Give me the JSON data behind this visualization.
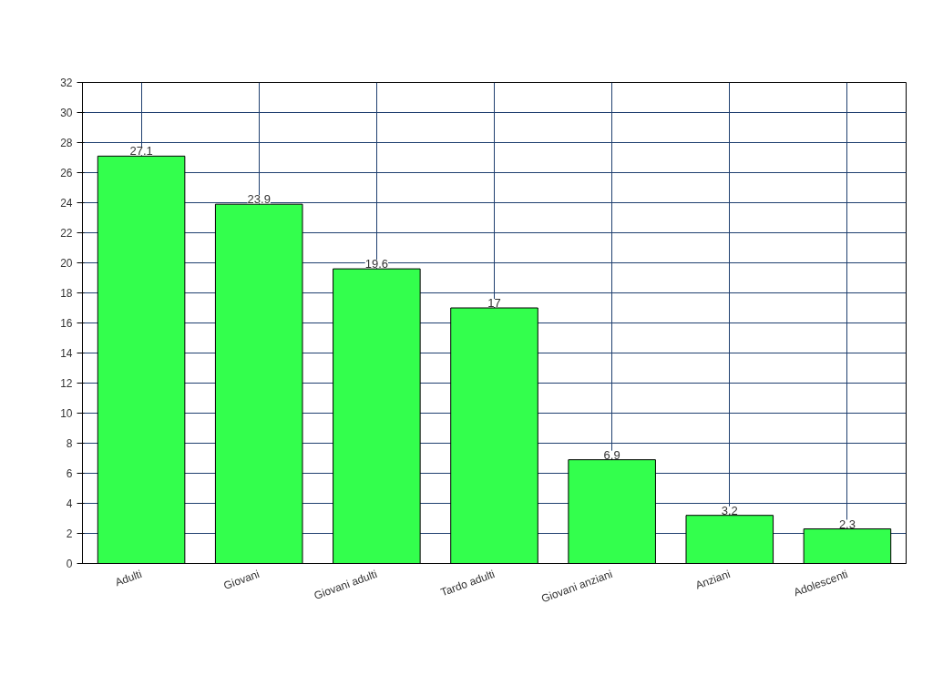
{
  "chart_data": {
    "type": "bar",
    "categories": [
      "Adulti",
      "Giovani",
      "Giovani adulti",
      "Tardo adulti",
      "Giovani anziani",
      "Anziani",
      "Adolescenti"
    ],
    "values": [
      27.1,
      23.9,
      19.6,
      17,
      6.9,
      3.2,
      2.3
    ],
    "color": "#33ff4d",
    "ylim": [
      0,
      32
    ],
    "yticks": [
      0,
      2,
      4,
      6,
      8,
      10,
      12,
      14,
      16,
      18,
      20,
      22,
      24,
      26,
      28,
      30,
      32
    ],
    "grid": true,
    "data_labels": true
  }
}
